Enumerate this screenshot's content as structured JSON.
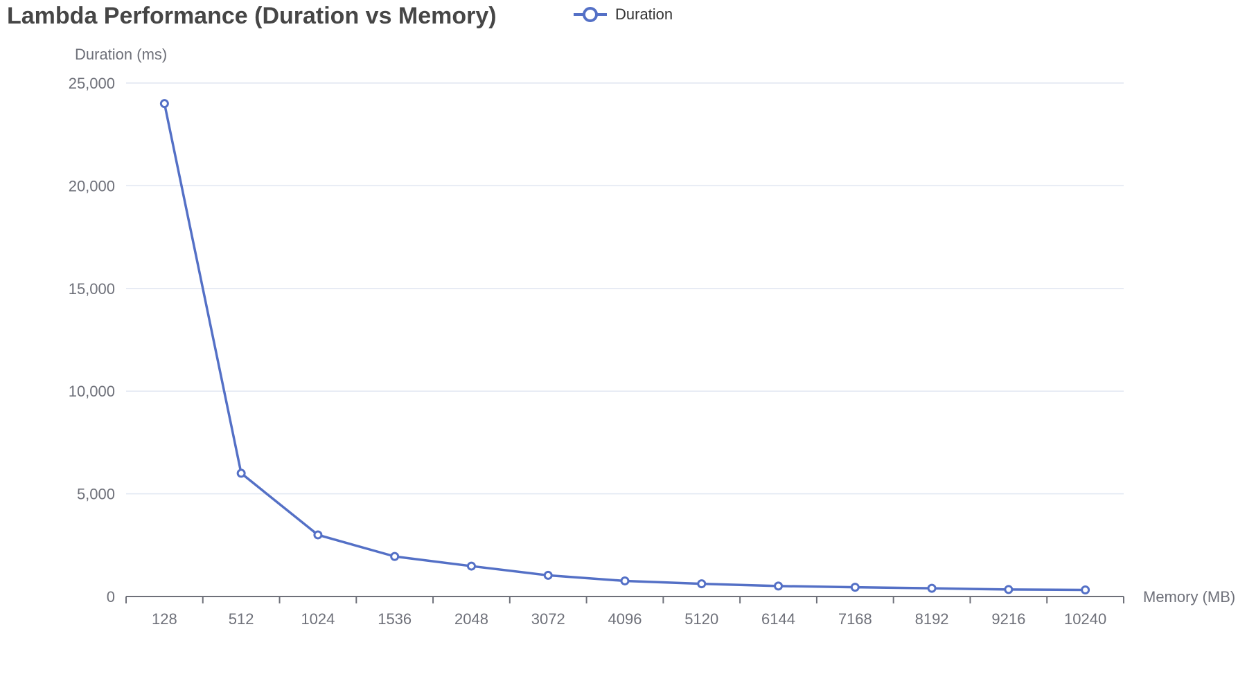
{
  "chart_data": {
    "type": "line",
    "title": "Lambda Performance (Duration vs Memory)",
    "xlabel": "Memory (MB)",
    "ylabel": "Duration (ms)",
    "categories": [
      "128",
      "512",
      "1024",
      "1536",
      "2048",
      "3072",
      "4096",
      "5120",
      "6144",
      "7168",
      "8192",
      "9216",
      "10240"
    ],
    "series": [
      {
        "name": "Duration",
        "values": [
          24000,
          6000,
          3000,
          1950,
          1480,
          1030,
          760,
          620,
          510,
          450,
          400,
          340,
          320
        ]
      }
    ],
    "ylim": [
      0,
      25000
    ],
    "yticks": [
      "0",
      "5,000",
      "10,000",
      "15,000",
      "20,000",
      "25,000"
    ],
    "ytick_values": [
      0,
      5000,
      10000,
      15000,
      20000,
      25000
    ],
    "grid": true,
    "legend_position": "top",
    "colors": {
      "series": "#5470c6",
      "grid": "#e0e6f1",
      "axis": "#6e7079",
      "title": "#464646"
    }
  }
}
